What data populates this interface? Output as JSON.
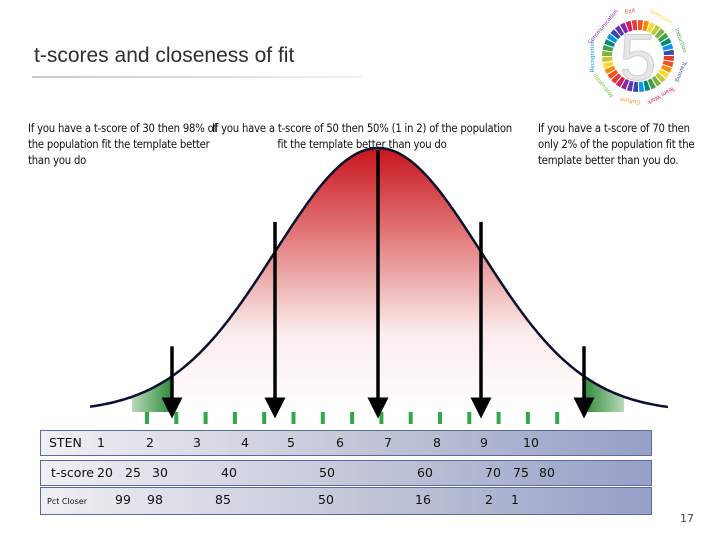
{
  "slide": {
    "title": "t-scores and closeness of fit",
    "page_number": "17",
    "logo_digit": "5",
    "logo_words": [
      "Exit",
      "Selection",
      "Induction",
      "Training",
      "Team Work",
      "Culture",
      "Motivation",
      "Recognition",
      "Communication"
    ]
  },
  "notes": {
    "left": "If you have a t-score of 30 then 98% of the population fit the template better than you do",
    "middle": "If you have a t-score of 50 then 50% (1 in 2) of the population fit the template better than you do",
    "right": "If you have a t-score of 70 then only 2% of the population fit the template better than you do."
  },
  "rows": {
    "sten": {
      "label": "STEN",
      "values": [
        "1",
        "2",
        "3",
        "4",
        "5",
        "6",
        "7",
        "8",
        "9",
        "10"
      ]
    },
    "tscore": {
      "label": "t-score",
      "values": [
        "20",
        "25",
        "30",
        "40",
        "50",
        "60",
        "70",
        "75",
        "80"
      ]
    },
    "pct": {
      "label": "Pct Closer",
      "values": [
        "99",
        "98",
        "85",
        "50",
        "16",
        "2",
        "1"
      ]
    }
  },
  "chart_data": {
    "type": "normal-distribution",
    "marked_tscores": [
      30,
      40,
      50,
      60,
      70
    ],
    "shaded_tails": [
      "left",
      "right"
    ],
    "colors": {
      "peak": "#c8141e",
      "tail": "#2e8b3a",
      "curve": "#0a1030",
      "ticks": "#2fa84a"
    }
  }
}
